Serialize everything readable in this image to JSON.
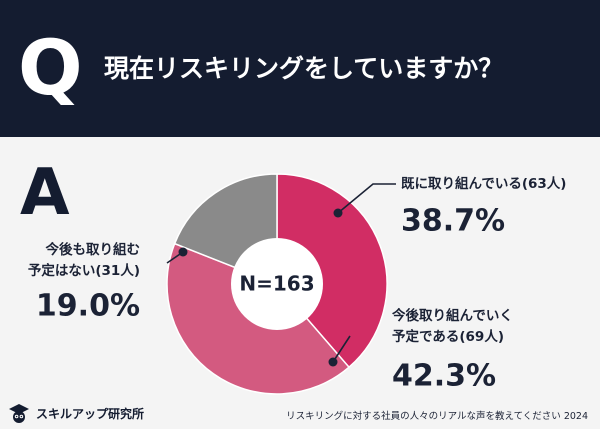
{
  "header": {
    "q_letter": "Q",
    "question": "現在リスキリングをしていますか？"
  },
  "answer_letter": "A",
  "chart_data": {
    "type": "pie",
    "donut": true,
    "center_label": "N=163",
    "slices": [
      {
        "name_lines": [
          "既に取り組んでいる(63人)"
        ],
        "count": 63,
        "percent": 38.7,
        "value_label": "38.7%",
        "color": "#d12d64"
      },
      {
        "name_lines": [
          "今後取り組んでいく",
          "予定である(69人)"
        ],
        "count": 69,
        "percent": 42.3,
        "value_label": "42.3%",
        "color": "#d35a80"
      },
      {
        "name_lines": [
          "今後も取り組む",
          "予定はない(31人)"
        ],
        "count": 31,
        "percent": 19.0,
        "value_label": "19.0%",
        "color": "#8a8a8a"
      }
    ]
  },
  "footer": {
    "logo_text": "スキルアップ研究所",
    "source": "リスキリングに対する社員の人々のリアルな声を教えてください 2024"
  },
  "colors": {
    "header_bg": "#141c30",
    "page_bg": "#f4f4f4"
  },
  "icons": {
    "logo": "graduation-cap-owl-icon"
  }
}
